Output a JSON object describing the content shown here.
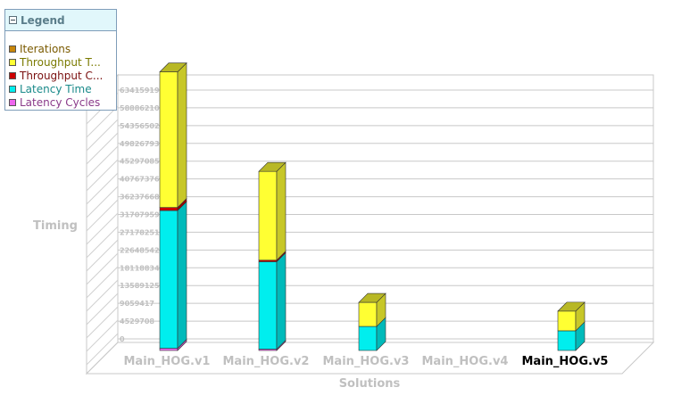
{
  "legend": {
    "title": "Legend",
    "items": [
      {
        "label": "Iterations",
        "color": "#c8860a",
        "text_color": "#7a5a00"
      },
      {
        "label": "Throughput T...",
        "color": "#ffff33",
        "text_color": "#7a7a00"
      },
      {
        "label": "Throughput C...",
        "color": "#cc0000",
        "text_color": "#7a1010"
      },
      {
        "label": "Latency Time",
        "color": "#00eeee",
        "text_color": "#1a8a8a"
      },
      {
        "label": "Latency Cycles",
        "color": "#ee66ee",
        "text_color": "#8a3a8a"
      }
    ]
  },
  "chart_data": {
    "type": "bar",
    "stacked": true,
    "style": "3d",
    "xlabel": "Solutions",
    "ylabel": "Timing",
    "categories": [
      "Main_HOG.v1",
      "Main_HOG.v2",
      "Main_HOG.v3",
      "Main_HOG.v4",
      "Main_HOG.v5"
    ],
    "highlighted_category": "Main_HOG.v5",
    "y_ticks": [
      "0",
      "4529708",
      "9059417",
      "13589125",
      "18118834",
      "22648542",
      "27178251",
      "31707959",
      "36237668",
      "40767376",
      "45297085",
      "49826793",
      "54356502",
      "58886210",
      "63415919"
    ],
    "ylim": [
      0,
      63415919
    ],
    "series": [
      {
        "name": "Latency Cycles",
        "color": "#ee66ee",
        "values": [
          500000,
          300000,
          0,
          0,
          0
        ]
      },
      {
        "name": "Latency Time",
        "color": "#00eeee",
        "values": [
          31500000,
          20000000,
          5500000,
          0,
          4500000
        ]
      },
      {
        "name": "Throughput C...",
        "color": "#cc0000",
        "values": [
          700000,
          350000,
          0,
          0,
          0
        ]
      },
      {
        "name": "Throughput T...",
        "color": "#ffff33",
        "values": [
          31000000,
          20300000,
          5500000,
          0,
          4500000
        ]
      },
      {
        "name": "Iterations",
        "color": "#c8860a",
        "values": [
          0,
          0,
          0,
          0,
          0
        ]
      }
    ]
  }
}
